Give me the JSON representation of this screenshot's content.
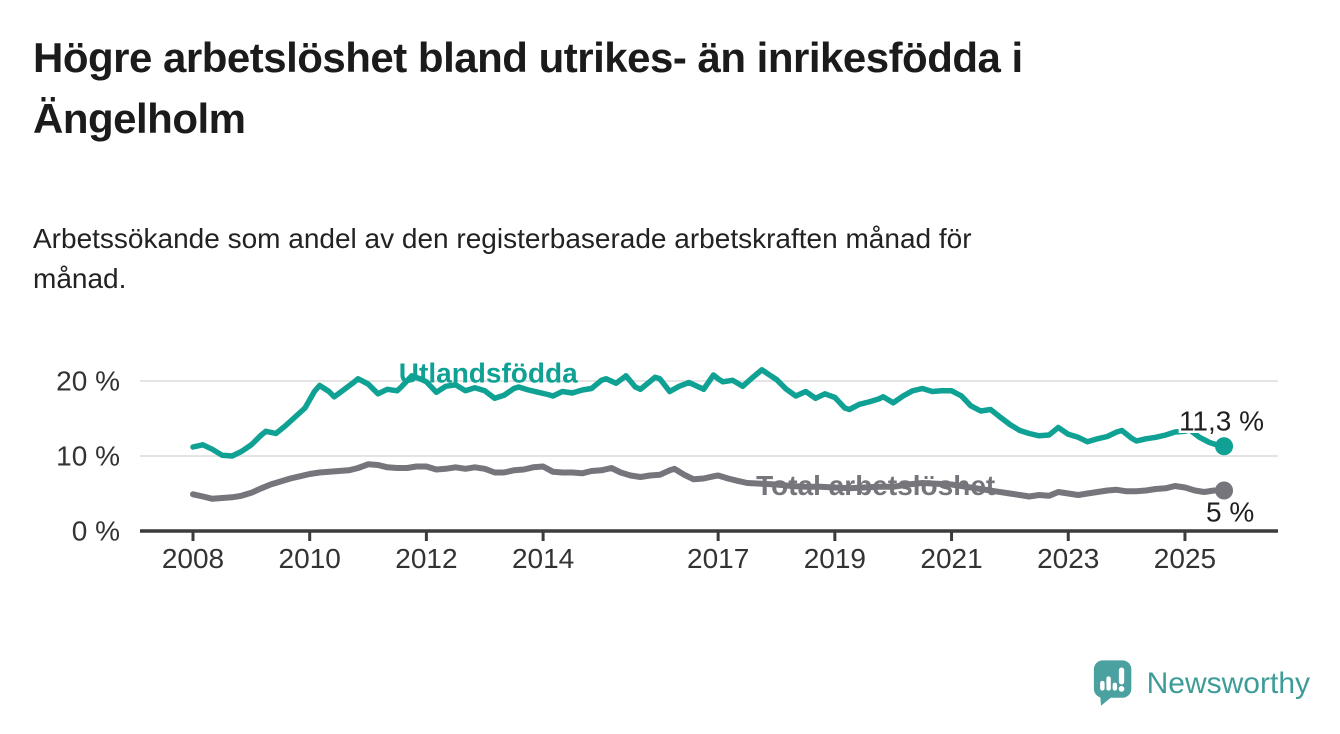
{
  "header": {
    "title_lines": [
      "Högre arbetslöshet bland utrikes- än inrikesfödda i",
      "Ängelholm"
    ],
    "subtitle_lines": [
      "Arbetssökande som andel av den registerbaserade arbetskraften månad för",
      "månad."
    ]
  },
  "colors": {
    "accent_teal": "#0FA294",
    "neutral_gray": "#76757B",
    "axis": "#3C3C3C",
    "grid": "#DBDBDB",
    "tick_text": "#333333",
    "end_label_text": "#1F1F1F",
    "logo_bubble": "#4BA0A0",
    "brand_text": "#3E9C98"
  },
  "chart_data": {
    "type": "line",
    "unit": "%",
    "x_ticks": [
      2008,
      2010,
      2012,
      2014,
      2017,
      2019,
      2021,
      2023,
      2025
    ],
    "y_ticks": [
      0,
      10,
      20
    ],
    "y_tick_suffix": " %",
    "xlim": [
      2007.75,
      2026.3
    ],
    "ylim": [
      0,
      25.5
    ],
    "grid": "horizontal-only",
    "legend_position": "inline-labels",
    "series": [
      {
        "name": "Utlandsfödda",
        "color": "#0FA294",
        "end_label": "11,3 %",
        "last_value": 11.3,
        "label_anchor": {
          "year": 2013.06,
          "pct": 21.1
        },
        "points": [
          [
            2008.0,
            11.2
          ],
          [
            2008.17,
            11.5
          ],
          [
            2008.33,
            10.9
          ],
          [
            2008.5,
            10.1
          ],
          [
            2008.67,
            10.0
          ],
          [
            2008.83,
            10.6
          ],
          [
            2009.0,
            11.5
          ],
          [
            2009.17,
            12.8
          ],
          [
            2009.25,
            13.3
          ],
          [
            2009.42,
            13.0
          ],
          [
            2009.58,
            14.0
          ],
          [
            2009.75,
            15.2
          ],
          [
            2009.92,
            16.4
          ],
          [
            2010.08,
            18.6
          ],
          [
            2010.17,
            19.4
          ],
          [
            2010.33,
            18.6
          ],
          [
            2010.42,
            17.9
          ],
          [
            2010.58,
            18.8
          ],
          [
            2010.75,
            19.8
          ],
          [
            2010.83,
            20.3
          ],
          [
            2011.0,
            19.6
          ],
          [
            2011.17,
            18.3
          ],
          [
            2011.33,
            18.9
          ],
          [
            2011.5,
            18.7
          ],
          [
            2011.58,
            19.3
          ],
          [
            2011.75,
            20.7
          ],
          [
            2011.92,
            20.2
          ],
          [
            2012.0,
            19.9
          ],
          [
            2012.17,
            18.5
          ],
          [
            2012.33,
            19.3
          ],
          [
            2012.5,
            19.5
          ],
          [
            2012.67,
            18.7
          ],
          [
            2012.83,
            19.1
          ],
          [
            2013.0,
            18.7
          ],
          [
            2013.17,
            17.7
          ],
          [
            2013.33,
            18.1
          ],
          [
            2013.5,
            19.0
          ],
          [
            2013.58,
            19.2
          ],
          [
            2013.75,
            18.8
          ],
          [
            2013.92,
            18.5
          ],
          [
            2014.08,
            18.2
          ],
          [
            2014.17,
            18.0
          ],
          [
            2014.33,
            18.6
          ],
          [
            2014.5,
            18.4
          ],
          [
            2014.67,
            18.8
          ],
          [
            2014.83,
            19.0
          ],
          [
            2015.0,
            20.1
          ],
          [
            2015.08,
            20.3
          ],
          [
            2015.25,
            19.7
          ],
          [
            2015.42,
            20.7
          ],
          [
            2015.58,
            19.2
          ],
          [
            2015.67,
            18.9
          ],
          [
            2015.92,
            20.5
          ],
          [
            2016.0,
            20.3
          ],
          [
            2016.17,
            18.6
          ],
          [
            2016.33,
            19.3
          ],
          [
            2016.5,
            19.8
          ],
          [
            2016.75,
            18.9
          ],
          [
            2016.92,
            20.8
          ],
          [
            2017.0,
            20.3
          ],
          [
            2017.08,
            19.9
          ],
          [
            2017.25,
            20.1
          ],
          [
            2017.42,
            19.3
          ],
          [
            2017.58,
            20.4
          ],
          [
            2017.75,
            21.5
          ],
          [
            2017.92,
            20.6
          ],
          [
            2018.0,
            20.2
          ],
          [
            2018.17,
            18.9
          ],
          [
            2018.33,
            18.0
          ],
          [
            2018.5,
            18.6
          ],
          [
            2018.67,
            17.7
          ],
          [
            2018.83,
            18.3
          ],
          [
            2019.0,
            17.8
          ],
          [
            2019.17,
            16.4
          ],
          [
            2019.25,
            16.2
          ],
          [
            2019.42,
            16.9
          ],
          [
            2019.58,
            17.2
          ],
          [
            2019.75,
            17.6
          ],
          [
            2019.83,
            17.9
          ],
          [
            2020.0,
            17.1
          ],
          [
            2020.17,
            18.0
          ],
          [
            2020.33,
            18.7
          ],
          [
            2020.5,
            19.0
          ],
          [
            2020.67,
            18.6
          ],
          [
            2020.83,
            18.7
          ],
          [
            2021.0,
            18.7
          ],
          [
            2021.17,
            18.0
          ],
          [
            2021.33,
            16.7
          ],
          [
            2021.5,
            16.0
          ],
          [
            2021.67,
            16.2
          ],
          [
            2021.83,
            15.2
          ],
          [
            2022.0,
            14.2
          ],
          [
            2022.17,
            13.4
          ],
          [
            2022.33,
            13.0
          ],
          [
            2022.5,
            12.7
          ],
          [
            2022.67,
            12.8
          ],
          [
            2022.83,
            13.8
          ],
          [
            2023.0,
            12.9
          ],
          [
            2023.17,
            12.5
          ],
          [
            2023.33,
            11.9
          ],
          [
            2023.5,
            12.3
          ],
          [
            2023.67,
            12.6
          ],
          [
            2023.83,
            13.2
          ],
          [
            2023.92,
            13.4
          ],
          [
            2024.08,
            12.4
          ],
          [
            2024.17,
            12.0
          ],
          [
            2024.33,
            12.3
          ],
          [
            2024.5,
            12.5
          ],
          [
            2024.67,
            12.8
          ],
          [
            2024.83,
            13.2
          ],
          [
            2025.0,
            13.3
          ],
          [
            2025.08,
            13.5
          ],
          [
            2025.25,
            12.5
          ],
          [
            2025.42,
            11.8
          ],
          [
            2025.58,
            11.4
          ],
          [
            2025.67,
            11.3
          ]
        ]
      },
      {
        "name": "Total arbetslöshet",
        "color": "#76757B",
        "end_label": "5 %",
        "last_value": 5.4,
        "label_anchor": {
          "year": 2019.7,
          "pct": 6.1
        },
        "points": [
          [
            2008.0,
            4.9
          ],
          [
            2008.17,
            4.6
          ],
          [
            2008.33,
            4.3
          ],
          [
            2008.5,
            4.4
          ],
          [
            2008.67,
            4.5
          ],
          [
            2008.83,
            4.7
          ],
          [
            2009.0,
            5.1
          ],
          [
            2009.17,
            5.7
          ],
          [
            2009.33,
            6.2
          ],
          [
            2009.5,
            6.6
          ],
          [
            2009.67,
            7.0
          ],
          [
            2009.83,
            7.3
          ],
          [
            2010.0,
            7.6
          ],
          [
            2010.17,
            7.8
          ],
          [
            2010.33,
            7.9
          ],
          [
            2010.5,
            8.0
          ],
          [
            2010.67,
            8.1
          ],
          [
            2010.83,
            8.4
          ],
          [
            2011.0,
            8.9
          ],
          [
            2011.17,
            8.8
          ],
          [
            2011.33,
            8.5
          ],
          [
            2011.5,
            8.4
          ],
          [
            2011.67,
            8.4
          ],
          [
            2011.83,
            8.6
          ],
          [
            2012.0,
            8.6
          ],
          [
            2012.17,
            8.2
          ],
          [
            2012.33,
            8.3
          ],
          [
            2012.5,
            8.5
          ],
          [
            2012.67,
            8.3
          ],
          [
            2012.83,
            8.5
          ],
          [
            2013.0,
            8.3
          ],
          [
            2013.17,
            7.8
          ],
          [
            2013.33,
            7.8
          ],
          [
            2013.5,
            8.1
          ],
          [
            2013.67,
            8.2
          ],
          [
            2013.83,
            8.5
          ],
          [
            2014.0,
            8.6
          ],
          [
            2014.17,
            7.9
          ],
          [
            2014.33,
            7.8
          ],
          [
            2014.5,
            7.8
          ],
          [
            2014.67,
            7.7
          ],
          [
            2014.83,
            8.0
          ],
          [
            2015.0,
            8.1
          ],
          [
            2015.17,
            8.4
          ],
          [
            2015.33,
            7.8
          ],
          [
            2015.5,
            7.4
          ],
          [
            2015.67,
            7.2
          ],
          [
            2015.83,
            7.4
          ],
          [
            2016.0,
            7.5
          ],
          [
            2016.17,
            8.1
          ],
          [
            2016.25,
            8.3
          ],
          [
            2016.42,
            7.5
          ],
          [
            2016.58,
            6.9
          ],
          [
            2016.75,
            7.0
          ],
          [
            2016.92,
            7.3
          ],
          [
            2017.0,
            7.4
          ],
          [
            2017.17,
            7.0
          ],
          [
            2017.33,
            6.7
          ],
          [
            2017.5,
            6.4
          ],
          [
            2017.75,
            6.3
          ],
          [
            2018.0,
            6.2
          ],
          [
            2018.25,
            6.0
          ],
          [
            2018.5,
            5.9
          ],
          [
            2018.75,
            5.9
          ],
          [
            2019.0,
            5.8
          ],
          [
            2019.25,
            5.7
          ],
          [
            2019.5,
            5.8
          ],
          [
            2019.75,
            5.9
          ],
          [
            2020.0,
            5.9
          ],
          [
            2020.25,
            6.2
          ],
          [
            2020.5,
            6.4
          ],
          [
            2020.75,
            6.3
          ],
          [
            2021.0,
            6.2
          ],
          [
            2021.25,
            5.9
          ],
          [
            2021.5,
            5.6
          ],
          [
            2021.75,
            5.3
          ],
          [
            2022.0,
            5.0
          ],
          [
            2022.17,
            4.8
          ],
          [
            2022.33,
            4.6
          ],
          [
            2022.5,
            4.8
          ],
          [
            2022.67,
            4.7
          ],
          [
            2022.83,
            5.2
          ],
          [
            2023.0,
            5.0
          ],
          [
            2023.17,
            4.8
          ],
          [
            2023.33,
            5.0
          ],
          [
            2023.5,
            5.2
          ],
          [
            2023.67,
            5.4
          ],
          [
            2023.83,
            5.5
          ],
          [
            2024.0,
            5.3
          ],
          [
            2024.17,
            5.3
          ],
          [
            2024.33,
            5.4
          ],
          [
            2024.5,
            5.6
          ],
          [
            2024.67,
            5.7
          ],
          [
            2024.83,
            6.0
          ],
          [
            2025.0,
            5.8
          ],
          [
            2025.17,
            5.4
          ],
          [
            2025.33,
            5.2
          ],
          [
            2025.5,
            5.4
          ],
          [
            2025.67,
            5.4
          ]
        ]
      }
    ]
  },
  "footer": {
    "brand": "Newsworthy",
    "logo_icon": "bar-chart-speech-bubble-icon"
  }
}
